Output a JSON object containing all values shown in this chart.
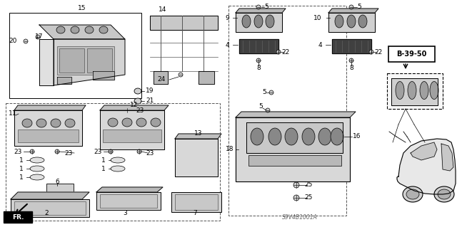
{
  "bg_color": "#ffffff",
  "fig_width": 6.4,
  "fig_height": 3.19,
  "dpi": 100,
  "watermark": "S9V4B1001A",
  "ref_code": "B-39-50",
  "fr_label": "FR."
}
